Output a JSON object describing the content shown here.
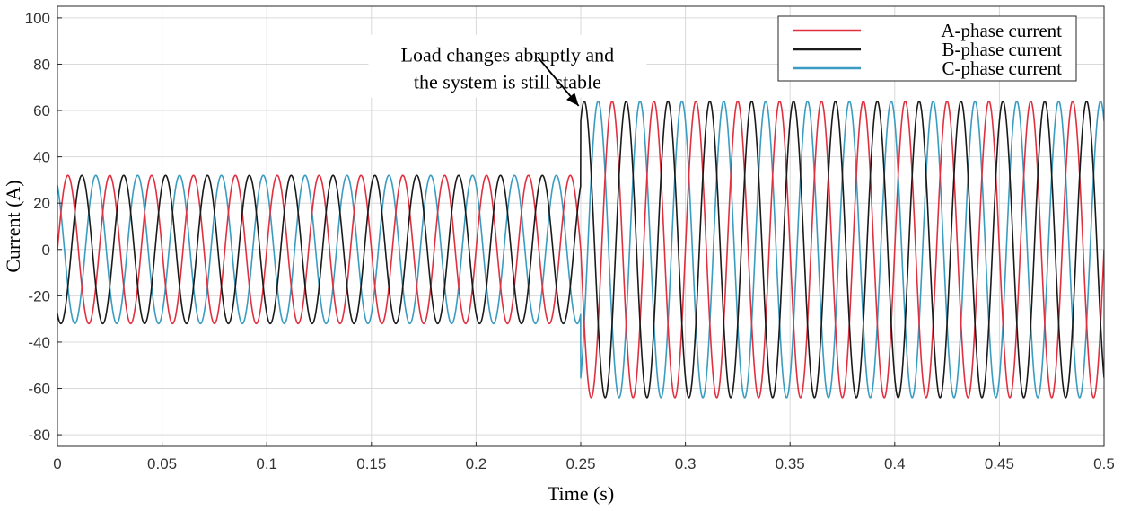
{
  "chart_data": {
    "type": "line",
    "xlabel": "Time (s)",
    "ylabel": "Current (A)",
    "xlim": [
      0,
      0.5
    ],
    "ylim": [
      -85,
      105
    ],
    "xticks": [
      0,
      0.05,
      0.1,
      0.15,
      0.2,
      0.25,
      0.3,
      0.35,
      0.4,
      0.45,
      0.5
    ],
    "xtick_labels": [
      "0",
      "0.05",
      "0.1",
      "0.15",
      "0.2",
      "0.25",
      "0.3",
      "0.35",
      "0.4",
      "0.45",
      "0.5"
    ],
    "yticks": [
      -80,
      -60,
      -40,
      -20,
      0,
      20,
      40,
      60,
      80,
      100
    ],
    "ytick_labels": [
      "-80",
      "-60",
      "-40",
      "-20",
      "0",
      "20",
      "40",
      "60",
      "80",
      "100"
    ],
    "grid": true,
    "legend_position": "top-right",
    "frequency_hz": 50,
    "step_time_s": 0.25,
    "series": [
      {
        "name": "A-phase current",
        "color": "#e03040",
        "amplitude_before": 32,
        "amplitude_after": 64,
        "phase_deg": 0
      },
      {
        "name": "B-phase current",
        "color": "#1a1a1a",
        "amplitude_before": 32,
        "amplitude_after": 64,
        "phase_deg": -120
      },
      {
        "name": "C-phase current",
        "color": "#3a9cc0",
        "amplitude_before": 32,
        "amplitude_after": 64,
        "phase_deg": 120
      }
    ],
    "annotations": [
      {
        "lines": [
          "Load changes abruptly and",
          "the system  is still stable"
        ],
        "x": 0.215,
        "y": 78,
        "arrow_to": [
          0.249,
          62
        ]
      }
    ]
  }
}
